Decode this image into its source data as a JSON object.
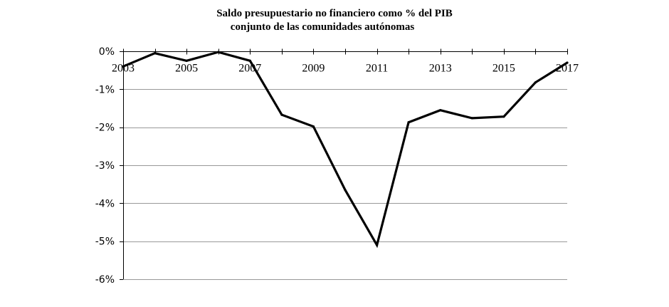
{
  "chart_data": {
    "type": "line",
    "title_lines": [
      "Saldo presupuestario no financiero como % del PIB",
      "conjunto de las comunidades autónomas"
    ],
    "xlabel": "",
    "ylabel": "",
    "x": [
      2003,
      2004,
      2005,
      2006,
      2007,
      2008,
      2009,
      2010,
      2011,
      2012,
      2013,
      2014,
      2015,
      2016,
      2017
    ],
    "series": [
      {
        "values": [
          -0.4,
          -0.05,
          -0.25,
          -0.02,
          -0.25,
          -1.67,
          -1.98,
          -3.65,
          -5.1,
          -1.87,
          -1.55,
          -1.76,
          -1.72,
          -0.82,
          -0.3
        ],
        "color": "#000000"
      }
    ],
    "x_tick_labels": [
      "2003",
      "2005",
      "2007",
      "2009",
      "2011",
      "2013",
      "2015",
      "2017"
    ],
    "x_tick_values": [
      2003,
      2005,
      2007,
      2009,
      2011,
      2013,
      2015,
      2017
    ],
    "y_tick_labels": [
      "0%",
      "-1%",
      "-2%",
      "-3%",
      "-4%",
      "-5%",
      "-6%"
    ],
    "y_tick_values": [
      0,
      -1,
      -2,
      -3,
      -4,
      -5,
      -6
    ],
    "xlim": [
      2003,
      2017
    ],
    "ylim": [
      -6,
      0
    ],
    "grid": "horizontal",
    "legend": "none",
    "line_color": "#000000",
    "grid_color": "#999999"
  }
}
